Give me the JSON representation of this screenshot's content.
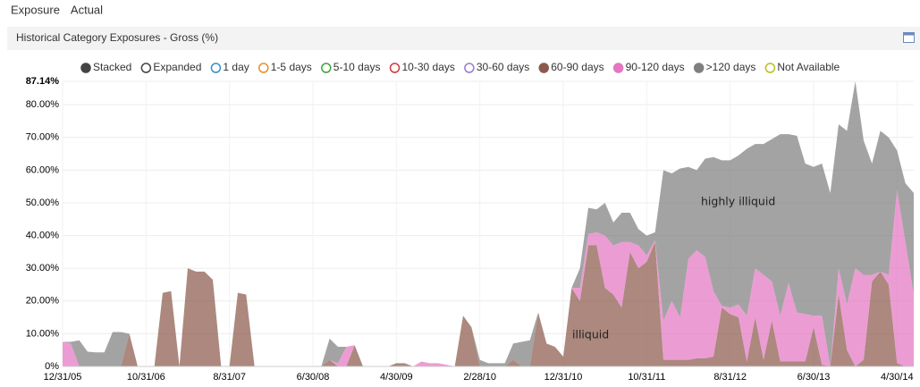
{
  "tabs": [
    "Exposure",
    "Actual"
  ],
  "active_tab": 0,
  "chart_data": {
    "type": "stacked-area",
    "title": "Historical Category Exposures - Gross (%)",
    "modes": [
      "Stacked",
      "Expanded"
    ],
    "mode": "Stacked",
    "x": [
      "12/31/05",
      "1/31/06",
      "2/28/06",
      "3/31/06",
      "4/30/06",
      "5/31/06",
      "6/30/06",
      "7/31/06",
      "8/31/06",
      "9/30/06",
      "10/31/06",
      "11/30/06",
      "12/31/06",
      "1/31/07",
      "2/28/07",
      "3/31/07",
      "4/30/07",
      "5/31/07",
      "6/30/07",
      "7/31/07",
      "8/31/07",
      "9/30/07",
      "10/31/07",
      "11/30/07",
      "12/31/07",
      "1/31/08",
      "2/29/08",
      "3/31/08",
      "4/30/08",
      "5/31/08",
      "6/30/08",
      "7/31/08",
      "8/31/08",
      "9/30/08",
      "10/31/08",
      "11/30/08",
      "12/31/08",
      "1/31/09",
      "2/28/09",
      "3/31/09",
      "4/30/09",
      "5/31/09",
      "6/30/09",
      "7/31/09",
      "8/31/09",
      "9/30/09",
      "10/31/09",
      "11/30/09",
      "12/31/09",
      "1/31/10",
      "2/28/10",
      "3/31/10",
      "4/30/10",
      "5/31/10",
      "6/30/10",
      "7/31/10",
      "8/31/10",
      "9/30/10",
      "10/31/10",
      "11/30/10",
      "12/31/10",
      "1/31/11",
      "2/28/11",
      "3/31/11",
      "4/30/11",
      "5/31/11",
      "6/30/11",
      "7/31/11",
      "8/31/11",
      "9/30/11",
      "10/31/11",
      "11/30/11",
      "12/31/11",
      "1/31/12",
      "2/29/12",
      "3/31/12",
      "4/30/12",
      "5/31/12",
      "6/30/12",
      "7/31/12",
      "8/31/12",
      "9/30/12",
      "10/31/12",
      "11/30/12",
      "12/31/12",
      "1/31/13",
      "2/28/13",
      "3/31/13",
      "4/30/13",
      "5/31/13",
      "6/30/13",
      "7/31/13",
      "8/31/13",
      "9/30/13",
      "10/31/13",
      "11/30/13",
      "12/31/13",
      "1/31/14",
      "2/28/14",
      "3/31/14",
      "4/30/14",
      "5/31/14",
      "6/30/14"
    ],
    "xticks": [
      "12/31/05",
      "10/31/06",
      "8/31/07",
      "6/30/08",
      "4/30/09",
      "2/28/10",
      "12/31/10",
      "10/31/11",
      "8/31/12",
      "6/30/13",
      "4/30/14"
    ],
    "ylim": [
      0,
      87.14
    ],
    "yticks": [
      {
        "value": 0,
        "label": "0%"
      },
      {
        "value": 10,
        "label": "10.00%"
      },
      {
        "value": 20,
        "label": "20.00%"
      },
      {
        "value": 30,
        "label": "30.00%"
      },
      {
        "value": 40,
        "label": "40.00%"
      },
      {
        "value": 50,
        "label": "50.00%"
      },
      {
        "value": 60,
        "label": "60.00%"
      },
      {
        "value": 70,
        "label": "70.00%"
      },
      {
        "value": 80,
        "label": "80.00%"
      },
      {
        "value": 87.14,
        "label": "87.14%"
      }
    ],
    "grid": true,
    "series": [
      {
        "name": "1 day",
        "color": "#3b8fc4",
        "disabled": true
      },
      {
        "name": "1-5 days",
        "color": "#e8902c",
        "disabled": true
      },
      {
        "name": "5-10 days",
        "color": "#3ea33e",
        "disabled": true
      },
      {
        "name": "10-30 days",
        "color": "#d03a3a",
        "disabled": true
      },
      {
        "name": "30-60 days",
        "color": "#9b7ad0",
        "disabled": true
      },
      {
        "name": "60-90 days",
        "color": "#8c5a4c",
        "values": [
          0,
          0,
          0,
          0,
          0,
          0,
          0,
          0,
          10,
          0,
          0,
          0,
          22.5,
          23,
          0,
          30,
          29,
          29,
          26.5,
          0,
          0,
          22.5,
          22,
          0,
          0,
          0,
          0,
          0,
          0,
          0,
          0,
          0,
          2,
          0,
          0,
          6.5,
          0,
          0,
          0,
          0,
          1,
          1,
          0,
          0,
          0,
          0,
          0,
          0,
          15.5,
          12,
          0,
          0,
          0,
          0,
          2,
          0,
          0,
          16.5,
          7,
          6,
          3,
          24,
          20,
          37,
          37,
          24,
          22,
          18,
          35,
          30,
          32,
          38,
          2,
          2,
          2,
          2,
          2.5,
          2.5,
          3,
          18,
          16,
          15,
          1.5,
          15,
          2,
          14,
          1.5,
          1.5,
          1.5,
          1.5,
          12,
          0.5,
          0,
          22,
          5,
          0,
          2,
          26,
          29,
          25,
          1,
          0,
          0
        ]
      },
      {
        "name": "90-120 days",
        "color": "#e377c2",
        "values": [
          7.5,
          7,
          0,
          0,
          0,
          0,
          0,
          0,
          0,
          0,
          0,
          0,
          0,
          0,
          0,
          0,
          0,
          0,
          0,
          0,
          0,
          0,
          0,
          0,
          0,
          0,
          0,
          0,
          0,
          0,
          0,
          0,
          0,
          1,
          6,
          0,
          0,
          0,
          0,
          0,
          0,
          0,
          0,
          1.5,
          1,
          1,
          0.5,
          0,
          0,
          0,
          0,
          0,
          0,
          0,
          0,
          0,
          0,
          0,
          0,
          0,
          0,
          0,
          4,
          3.5,
          4,
          16,
          15,
          20,
          3,
          7,
          2,
          0.5,
          12,
          18,
          13,
          31,
          33,
          31,
          20,
          0.5,
          2,
          4,
          14,
          15,
          26,
          12,
          14,
          24,
          15,
          14.5,
          3.5,
          15,
          0,
          8,
          14,
          30,
          26,
          2,
          0,
          3,
          53,
          38,
          22
        ]
      },
      {
        "name": ">120 days",
        "color": "#7f7f7f",
        "values": [
          0,
          0.5,
          8,
          4.5,
          4.3,
          4.3,
          10.5,
          10.5,
          0,
          0,
          0,
          0,
          0,
          0,
          0,
          0,
          0,
          0,
          0,
          0,
          0,
          0,
          0,
          0,
          0,
          0,
          0,
          0,
          0,
          0,
          0,
          0,
          6.5,
          5,
          0,
          0,
          0,
          0,
          0,
          0,
          0,
          0,
          0,
          0,
          0,
          0,
          0,
          0,
          0,
          0,
          2,
          1,
          1,
          1,
          5,
          7.5,
          8,
          0,
          0,
          0,
          0,
          0,
          6,
          8,
          7,
          10,
          7,
          9,
          9,
          5,
          6,
          2.5,
          46,
          39,
          45.5,
          28,
          24.5,
          30,
          41,
          44.5,
          45,
          45.5,
          51,
          38,
          40,
          43.5,
          55.5,
          45.5,
          54,
          46,
          45.5,
          46.5,
          53,
          44,
          53,
          57.14,
          41,
          34,
          43,
          42,
          12,
          18,
          31
        ]
      },
      {
        "name": "Not Available",
        "color": "#bcbd22",
        "disabled": true
      }
    ],
    "annotations": [
      "highly illiquid",
      "illiquid"
    ]
  }
}
